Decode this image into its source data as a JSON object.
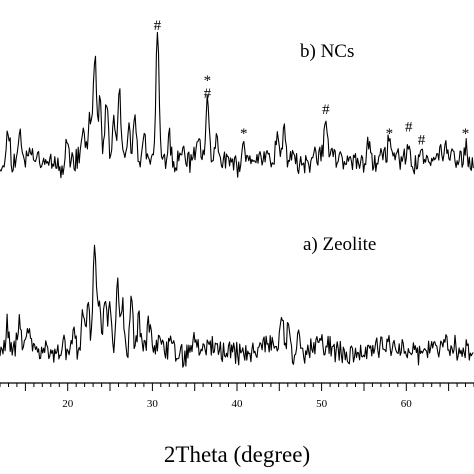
{
  "chart_data": {
    "type": "line",
    "title": "",
    "xlabel": "2Theta (degree)",
    "ylabel": "",
    "xlim": [
      12,
      68
    ],
    "x_ticks": [
      20,
      30,
      40,
      50,
      60
    ],
    "grid": false,
    "series": [
      {
        "name": "b) NCs",
        "peaks": [
          [
            13.0,
            0.45
          ],
          [
            14.4,
            0.35
          ],
          [
            19.9,
            0.3
          ],
          [
            21.8,
            0.35
          ],
          [
            22.6,
            0.55
          ],
          [
            23.2,
            1.3
          ],
          [
            23.8,
            0.7
          ],
          [
            24.6,
            0.8
          ],
          [
            25.5,
            0.55
          ],
          [
            26.1,
            0.9
          ],
          [
            27.2,
            0.45
          ],
          [
            27.9,
            0.5
          ],
          [
            29.0,
            0.35
          ],
          [
            30.6,
            1.55
          ],
          [
            32.0,
            0.3
          ],
          [
            33.6,
            0.15
          ],
          [
            35.5,
            0.2
          ],
          [
            36.5,
            0.7
          ],
          [
            37.6,
            0.2
          ],
          [
            40.8,
            0.2
          ],
          [
            44.8,
            0.3
          ],
          [
            45.6,
            0.45
          ],
          [
            46.7,
            0.2
          ],
          [
            50.5,
            0.5
          ],
          [
            55.6,
            0.3
          ],
          [
            58.0,
            0.2
          ],
          [
            60.3,
            0.28
          ],
          [
            61.8,
            0.12
          ],
          [
            64.6,
            0.1
          ],
          [
            67.0,
            0.2
          ]
        ]
      },
      {
        "name": "a) Zeolite",
        "peaks": [
          [
            12.8,
            0.35
          ],
          [
            14.2,
            0.3
          ],
          [
            15.2,
            0.2
          ],
          [
            19.5,
            0.2
          ],
          [
            20.6,
            0.25
          ],
          [
            21.8,
            0.4
          ],
          [
            22.4,
            0.5
          ],
          [
            23.2,
            1.2
          ],
          [
            23.7,
            0.6
          ],
          [
            24.4,
            0.7
          ],
          [
            25.0,
            0.5
          ],
          [
            25.9,
            0.85
          ],
          [
            26.5,
            0.6
          ],
          [
            27.5,
            0.55
          ],
          [
            28.4,
            0.35
          ],
          [
            29.6,
            0.25
          ],
          [
            31.0,
            0.2
          ],
          [
            32.2,
            0.15
          ],
          [
            35.1,
            0.15
          ],
          [
            36.6,
            0.12
          ],
          [
            45.3,
            0.4
          ],
          [
            46.1,
            0.3
          ],
          [
            47.3,
            0.18
          ],
          [
            49.5,
            0.12
          ],
          [
            55.6,
            0.1
          ],
          [
            60.5,
            0.1
          ],
          [
            64.6,
            0.12
          ],
          [
            67.1,
            0.08
          ]
        ]
      }
    ],
    "annotations": [
      {
        "text": "#",
        "x": 30.6,
        "series": "b) NCs"
      },
      {
        "text": "*",
        "x": 36.5,
        "series": "b) NCs"
      },
      {
        "text": "#",
        "x": 36.5,
        "series": "b) NCs"
      },
      {
        "text": "*",
        "x": 40.8,
        "series": "b) NCs"
      },
      {
        "text": "#",
        "x": 50.5,
        "series": "b) NCs"
      },
      {
        "text": "*",
        "x": 58.0,
        "series": "b) NCs"
      },
      {
        "text": "#",
        "x": 60.3,
        "series": "b) NCs"
      },
      {
        "text": "#",
        "x": 61.8,
        "series": "b) NCs"
      },
      {
        "text": "*",
        "x": 67.0,
        "series": "b) NCs"
      }
    ]
  }
}
